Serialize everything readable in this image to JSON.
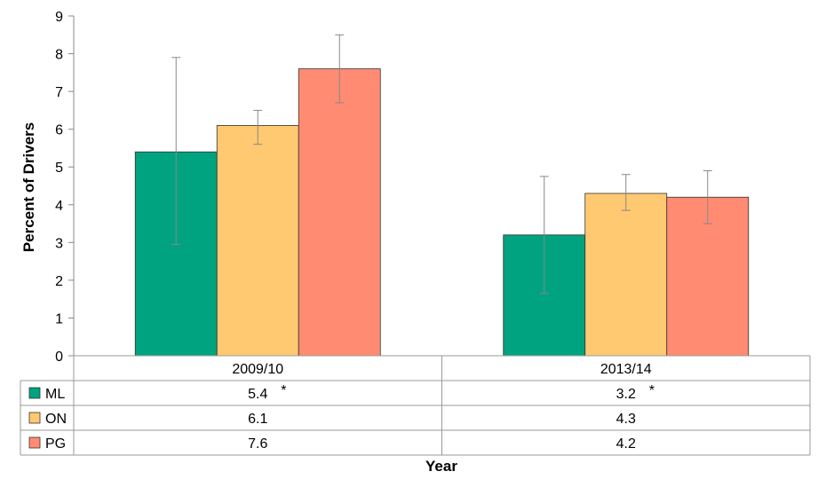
{
  "chart_data": {
    "type": "bar",
    "title": "",
    "xlabel": "Year",
    "ylabel": "Percent of Drivers",
    "ylim": [
      0,
      9
    ],
    "yticks": [
      0,
      1,
      2,
      3,
      4,
      5,
      6,
      7,
      8,
      9
    ],
    "grid": false,
    "legend": "data-table-left",
    "categories": [
      "2009/10",
      "2013/14"
    ],
    "series": [
      {
        "name": "ML",
        "color": "#00A37F",
        "values": [
          5.4,
          3.2
        ],
        "labels": [
          "5.4",
          "3.2"
        ],
        "flags": [
          "*",
          "*"
        ],
        "error_low": [
          2.95,
          1.65
        ],
        "error_high": [
          7.9,
          4.75
        ]
      },
      {
        "name": "ON",
        "color": "#FFC971",
        "values": [
          6.1,
          4.3
        ],
        "labels": [
          "6.1",
          "4.3"
        ],
        "flags": [
          "",
          ""
        ],
        "error_low": [
          5.6,
          3.85
        ],
        "error_high": [
          6.5,
          4.8
        ]
      },
      {
        "name": "PG",
        "color": "#FF8B72",
        "values": [
          7.6,
          4.2
        ],
        "labels": [
          "7.6",
          "4.2"
        ],
        "flags": [
          "",
          ""
        ],
        "error_low": [
          6.7,
          3.5
        ],
        "error_high": [
          8.5,
          4.9
        ]
      }
    ]
  }
}
